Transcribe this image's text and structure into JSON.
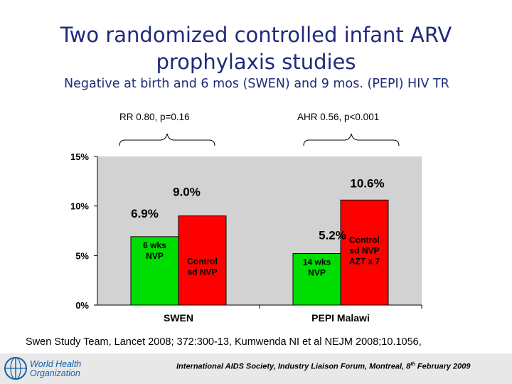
{
  "title_line1": "Two randomized controlled infant ARV",
  "title_line2": "prophylaxis studies",
  "subtitle": "Negative at birth and 6 mos (SWEN) and 9 mos. (PEPI) HIV TR",
  "stat_left": "RR 0.80, p=0.16",
  "stat_right": "AHR 0.56, p<0.001",
  "chart_data": {
    "type": "bar",
    "categories": [
      "SWEN",
      "PEPI Malawi"
    ],
    "ylim": [
      0,
      15
    ],
    "yticks": [
      {
        "value": 0,
        "label": "0%"
      },
      {
        "value": 5,
        "label": "5%"
      },
      {
        "value": 10,
        "label": "10%"
      },
      {
        "value": 15,
        "label": "15%"
      }
    ],
    "grid": false,
    "series": [
      {
        "color": "#00dd00",
        "values": [
          6.9,
          5.2
        ],
        "data_labels": [
          "6.9%",
          "5.2%"
        ],
        "bar_labels": [
          [
            "6 wks",
            "NVP"
          ],
          [
            "14 wks",
            "NVP"
          ]
        ]
      },
      {
        "color": "#ff0000",
        "values": [
          9.0,
          10.6
        ],
        "data_labels": [
          "9.0%",
          "10.6%"
        ],
        "bar_labels": [
          [
            "Control",
            "sd NVP"
          ],
          [
            "Control",
            "sd NVP",
            "AZT x 7"
          ]
        ]
      }
    ]
  },
  "citation": "Swen Study Team, Lancet 2008; 372:300-13, Kumwenda NI et al NEJM 2008;10.1056,",
  "footer_main": "International AIDS Society, Industry Liaison Forum, Montreal, 8",
  "footer_sup": "th",
  "footer_end": " February 2009",
  "logo_line1": "World Health",
  "logo_line2": "Organization",
  "logo_icon": "globe-emblem-icon"
}
